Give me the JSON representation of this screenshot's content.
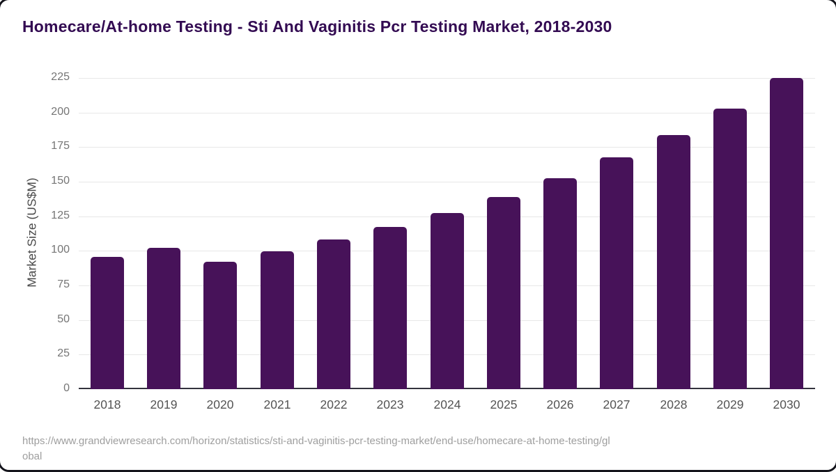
{
  "page": {
    "title": "Homecare/At-home Testing - Sti And Vaginitis Pcr Testing Market, 2018-2030"
  },
  "chart_data": {
    "type": "bar",
    "title": "Homecare/At-home Testing - Sti And Vaginitis Pcr Testing Market, 2018-2030",
    "categories": [
      "2018",
      "2019",
      "2020",
      "2021",
      "2022",
      "2023",
      "2024",
      "2025",
      "2026",
      "2027",
      "2028",
      "2029",
      "2030"
    ],
    "values": [
      95.5,
      102,
      92,
      99.5,
      108,
      117.5,
      127.5,
      139,
      152.5,
      167.5,
      183.5,
      203,
      225
    ],
    "xlabel": "",
    "ylabel": "Market Size (US$M)",
    "ylim": [
      0,
      225
    ],
    "yticks": [
      0,
      25,
      50,
      75,
      100,
      125,
      150,
      175,
      200,
      225
    ],
    "grid": true,
    "legend": false,
    "bar_color": "#471259"
  },
  "source": {
    "url": "https://www.grandviewresearch.com/horizon/statistics/sti-and-vaginitis-pcr-testing-market/end-use/homecare-at-home-testing/global",
    "line1": "https://www.grandviewresearch.com/horizon/statistics/sti-and-vaginitis-pcr-testing-market/end-use/homecare-at-home-testing/gl",
    "line2": "obal"
  },
  "theme": {
    "bar_color": "#471259",
    "title_color": "#330b52",
    "grid_color": "#e7e7e7",
    "axis_color": "#33333d",
    "ytick_color": "#757575",
    "xtick_color": "#545454",
    "ylabel_color": "#4a4a4a",
    "source_color": "#9e9e9e"
  }
}
